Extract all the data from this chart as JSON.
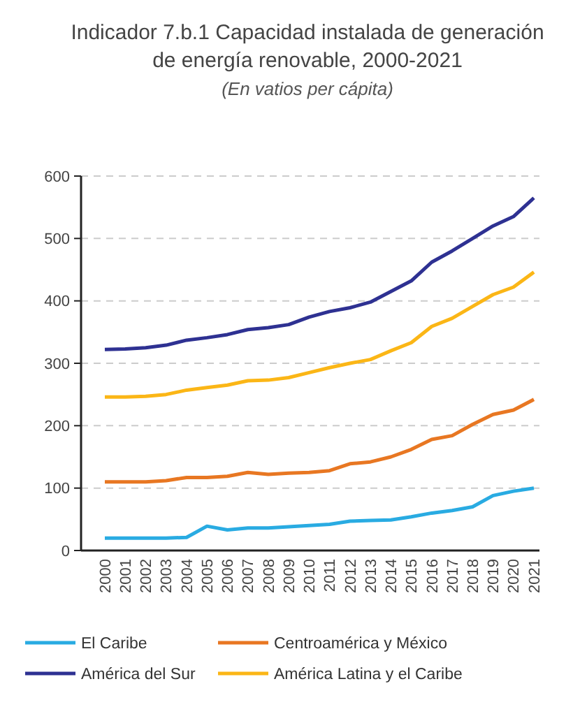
{
  "chart_data": {
    "type": "line",
    "title": "Indicador  7.b.1 Capacidad instalada de generación de energía renovable, 2000-2021",
    "subtitle": "(En vatios per cápita)",
    "categories": [
      "2000",
      "2001",
      "2002",
      "2003",
      "2004",
      "2005",
      "2006",
      "2007",
      "2008",
      "2009",
      "2010",
      "2011",
      "2012",
      "2013",
      "2014",
      "2015",
      "2016",
      "2017",
      "2018",
      "2019",
      "2020",
      "2021"
    ],
    "series": [
      {
        "name": "El Caribe",
        "color": "#29abe2",
        "values": [
          20,
          20,
          20,
          20,
          21,
          39,
          33,
          36,
          36,
          38,
          40,
          42,
          47,
          48,
          49,
          54,
          60,
          64,
          70,
          88,
          95,
          100
        ]
      },
      {
        "name": "Centroamérica y México",
        "color": "#e87722",
        "values": [
          110,
          110,
          110,
          112,
          117,
          117,
          119,
          125,
          122,
          124,
          125,
          128,
          139,
          142,
          150,
          162,
          178,
          184,
          202,
          218,
          225,
          242
        ]
      },
      {
        "name": "América del Sur",
        "color": "#2e3192",
        "values": [
          322,
          323,
          325,
          329,
          337,
          341,
          346,
          354,
          357,
          362,
          374,
          383,
          389,
          398,
          415,
          432,
          462,
          480,
          500,
          520,
          535,
          565
        ]
      },
      {
        "name": "América Latina y el Caribe",
        "color": "#fbb616",
        "values": [
          246,
          246,
          247,
          250,
          257,
          261,
          265,
          272,
          273,
          277,
          285,
          293,
          300,
          306,
          320,
          333,
          359,
          372,
          391,
          410,
          422,
          446
        ]
      }
    ],
    "ylim": [
      0,
      600
    ],
    "yticks": [
      0,
      100,
      200,
      300,
      400,
      500,
      600
    ],
    "grid": "y",
    "legend": "bottom",
    "marker": "none",
    "line_style": "solid"
  }
}
